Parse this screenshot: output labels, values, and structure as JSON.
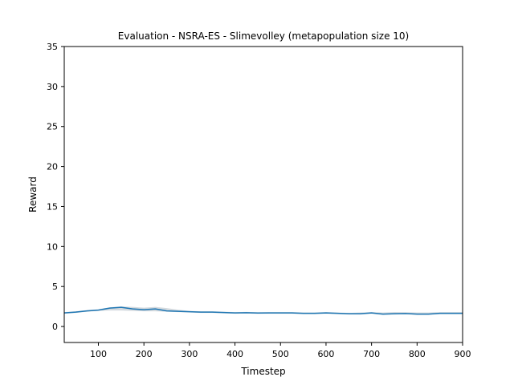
{
  "chart_data": {
    "type": "line",
    "title": "Evaluation - NSRA-ES - Slimevolley (metapopulation size 10)",
    "xlabel": "Timestep",
    "ylabel": "Reward",
    "xlim": [
      25,
      900
    ],
    "ylim": [
      -2,
      35
    ],
    "xticks": [
      100,
      200,
      300,
      400,
      500,
      600,
      700,
      800,
      900
    ],
    "yticks": [
      0,
      5,
      10,
      15,
      20,
      25,
      30,
      35
    ],
    "grid": false,
    "legend": "none",
    "series": [
      {
        "color": "#1f77b4",
        "band_color": "#c8cfd6",
        "x": [
          25,
          50,
          75,
          100,
          125,
          150,
          175,
          200,
          225,
          250,
          275,
          300,
          325,
          350,
          375,
          400,
          425,
          450,
          475,
          500,
          525,
          550,
          575,
          600,
          625,
          650,
          675,
          700,
          725,
          750,
          775,
          800,
          825,
          850,
          875,
          900
        ],
        "y": [
          1.7,
          1.8,
          1.95,
          2.05,
          2.3,
          2.4,
          2.2,
          2.1,
          2.2,
          1.95,
          1.9,
          1.85,
          1.8,
          1.8,
          1.75,
          1.7,
          1.72,
          1.68,
          1.7,
          1.7,
          1.7,
          1.65,
          1.65,
          1.7,
          1.65,
          1.6,
          1.6,
          1.7,
          1.55,
          1.6,
          1.62,
          1.55,
          1.55,
          1.65,
          1.65,
          1.65
        ],
        "lower": [
          1.6,
          1.7,
          1.85,
          1.95,
          2.0,
          2.0,
          1.95,
          1.9,
          1.9,
          1.85,
          1.8,
          1.75,
          1.7,
          1.7,
          1.65,
          1.6,
          1.62,
          1.58,
          1.6,
          1.6,
          1.6,
          1.55,
          1.55,
          1.6,
          1.55,
          1.5,
          1.5,
          1.6,
          1.45,
          1.5,
          1.52,
          1.45,
          1.45,
          1.55,
          1.55,
          1.55
        ],
        "upper": [
          1.8,
          1.9,
          2.05,
          2.15,
          2.4,
          2.5,
          2.45,
          2.35,
          2.45,
          2.3,
          2.1,
          1.95,
          1.9,
          1.9,
          1.85,
          1.8,
          1.82,
          1.78,
          1.8,
          1.8,
          1.8,
          1.75,
          1.75,
          1.8,
          1.75,
          1.7,
          1.75,
          1.8,
          1.75,
          1.8,
          1.78,
          1.75,
          1.75,
          1.8,
          1.8,
          1.8
        ]
      }
    ]
  }
}
